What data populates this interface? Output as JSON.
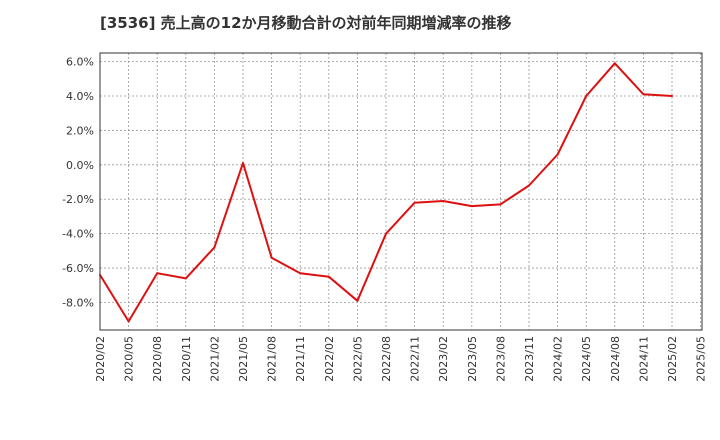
{
  "colors": {
    "line": "#dd1111",
    "grid": "#999999",
    "frame": "#333333"
  },
  "chart_data": {
    "type": "line",
    "title": "[3536]  売上高の12か月移動合計の対前年同期増減率の推移",
    "xlabel": "",
    "ylabel": "",
    "ylim": [
      -9.6,
      6.5
    ],
    "y_ticks": [
      6.0,
      4.0,
      2.0,
      0.0,
      -2.0,
      -4.0,
      -6.0,
      -8.0
    ],
    "y_tick_labels": [
      "6.0%",
      "4.0%",
      "2.0%",
      "0.0%",
      "-2.0%",
      "-4.0%",
      "-6.0%",
      "-8.0%"
    ],
    "x_tick_labels": [
      "2020/02",
      "2020/05",
      "2020/08",
      "2020/11",
      "2021/02",
      "2021/05",
      "2021/08",
      "2021/11",
      "2022/02",
      "2022/05",
      "2022/08",
      "2022/11",
      "2023/02",
      "2023/05",
      "2023/08",
      "2023/11",
      "2024/02",
      "2024/05",
      "2024/08",
      "2024/11",
      "2025/02",
      "2025/05"
    ],
    "grid": true,
    "series": [
      {
        "name": "対前年同期増減率",
        "x": [
          "2020/02",
          "2020/05",
          "2020/08",
          "2020/11",
          "2021/02",
          "2021/05",
          "2021/08",
          "2021/11",
          "2022/02",
          "2022/05",
          "2022/08",
          "2022/11",
          "2023/02",
          "2023/05",
          "2023/08",
          "2023/11",
          "2024/02",
          "2024/05",
          "2024/08",
          "2024/11",
          "2025/02"
        ],
        "values": [
          -6.4,
          -9.1,
          -6.3,
          -6.6,
          -4.8,
          0.1,
          -5.4,
          -6.3,
          -6.5,
          -7.9,
          -4.0,
          -2.2,
          -2.1,
          -2.4,
          -2.3,
          -1.2,
          0.6,
          4.0,
          5.9,
          4.1,
          4.0
        ]
      }
    ]
  }
}
